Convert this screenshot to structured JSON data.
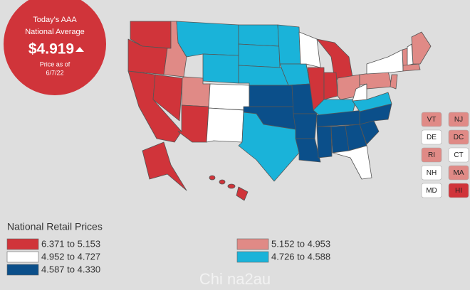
{
  "badge": {
    "line1": "Today's AAA",
    "line2": "National Average",
    "price": "$4.919",
    "line3": "Price as of",
    "date": "6/7/22"
  },
  "legend": {
    "title": "National Retail Prices",
    "items": [
      {
        "label": "6.371 to 5.153",
        "color": "#d0343a"
      },
      {
        "label": "4.952 to 4.727",
        "color": "#ffffff"
      },
      {
        "label": "4.587 to 4.330",
        "color": "#0b4f8a"
      },
      {
        "label": "5.152 to 4.953",
        "color": "#e08a86"
      },
      {
        "label": "4.726 to 4.588",
        "color": "#1ab3d9"
      }
    ]
  },
  "small_states": [
    {
      "label": "VT",
      "color": "#e08a86"
    },
    {
      "label": "NJ",
      "color": "#e08a86"
    },
    {
      "label": "DE",
      "color": "#ffffff"
    },
    {
      "label": "DC",
      "color": "#e08a86"
    },
    {
      "label": "RI",
      "color": "#e08a86"
    },
    {
      "label": "CT",
      "color": "#ffffff"
    },
    {
      "label": "NH",
      "color": "#ffffff"
    },
    {
      "label": "MA",
      "color": "#e08a86"
    },
    {
      "label": "MD",
      "color": "#ffffff"
    },
    {
      "label": "HI",
      "color": "#d0343a"
    }
  ],
  "watermark": "Chi na2au"
}
